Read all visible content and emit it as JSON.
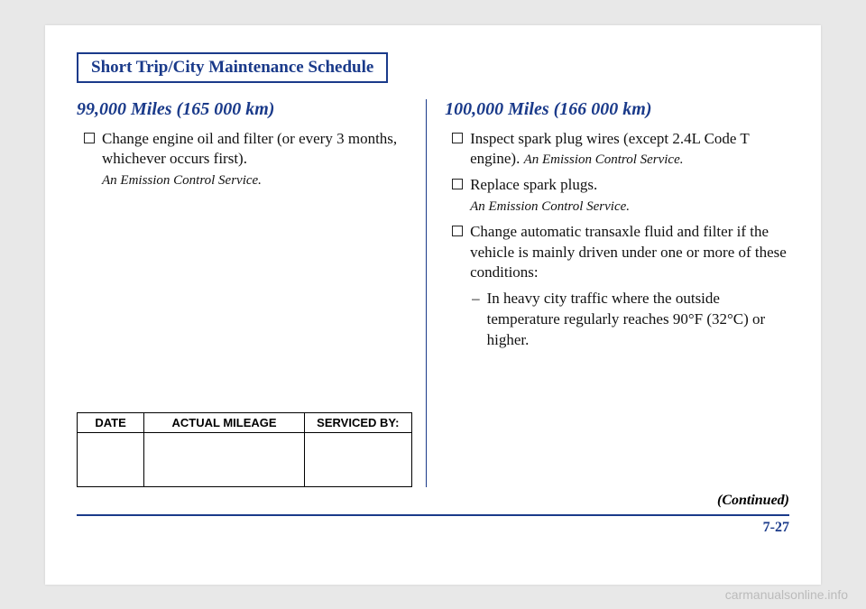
{
  "colors": {
    "primary_blue": "#1a3a8a",
    "text": "#111",
    "background": "#ffffff",
    "page_bg": "#e8e8e8",
    "watermark_gray": "#bbb"
  },
  "title": "Short Trip/City Maintenance Schedule",
  "left_column": {
    "heading": "99,000 Miles (165 000 km)",
    "items": [
      {
        "text": "Change engine oil and filter (or every 3 months, whichever occurs first).",
        "note": "An Emission Control Service."
      }
    ]
  },
  "right_column": {
    "heading": "100,000 Miles (166 000 km)",
    "items": [
      {
        "text": "Inspect spark plug wires (except 2.4L Code T engine). ",
        "note_inline": "An Emission Control Service."
      },
      {
        "text": "Replace spark plugs.",
        "note": "An Emission Control Service."
      },
      {
        "text": "Change automatic transaxle fluid and filter if the vehicle is mainly driven under one or more of these conditions:",
        "sub": "In heavy city traffic where the outside temperature regularly reaches 90°F (32°C) or higher."
      }
    ]
  },
  "table": {
    "headers": [
      "DATE",
      "ACTUAL MILEAGE",
      "SERVICED BY:"
    ]
  },
  "continued": "(Continued)",
  "page_number": "7-27",
  "watermark": "carmanualsonline.info"
}
